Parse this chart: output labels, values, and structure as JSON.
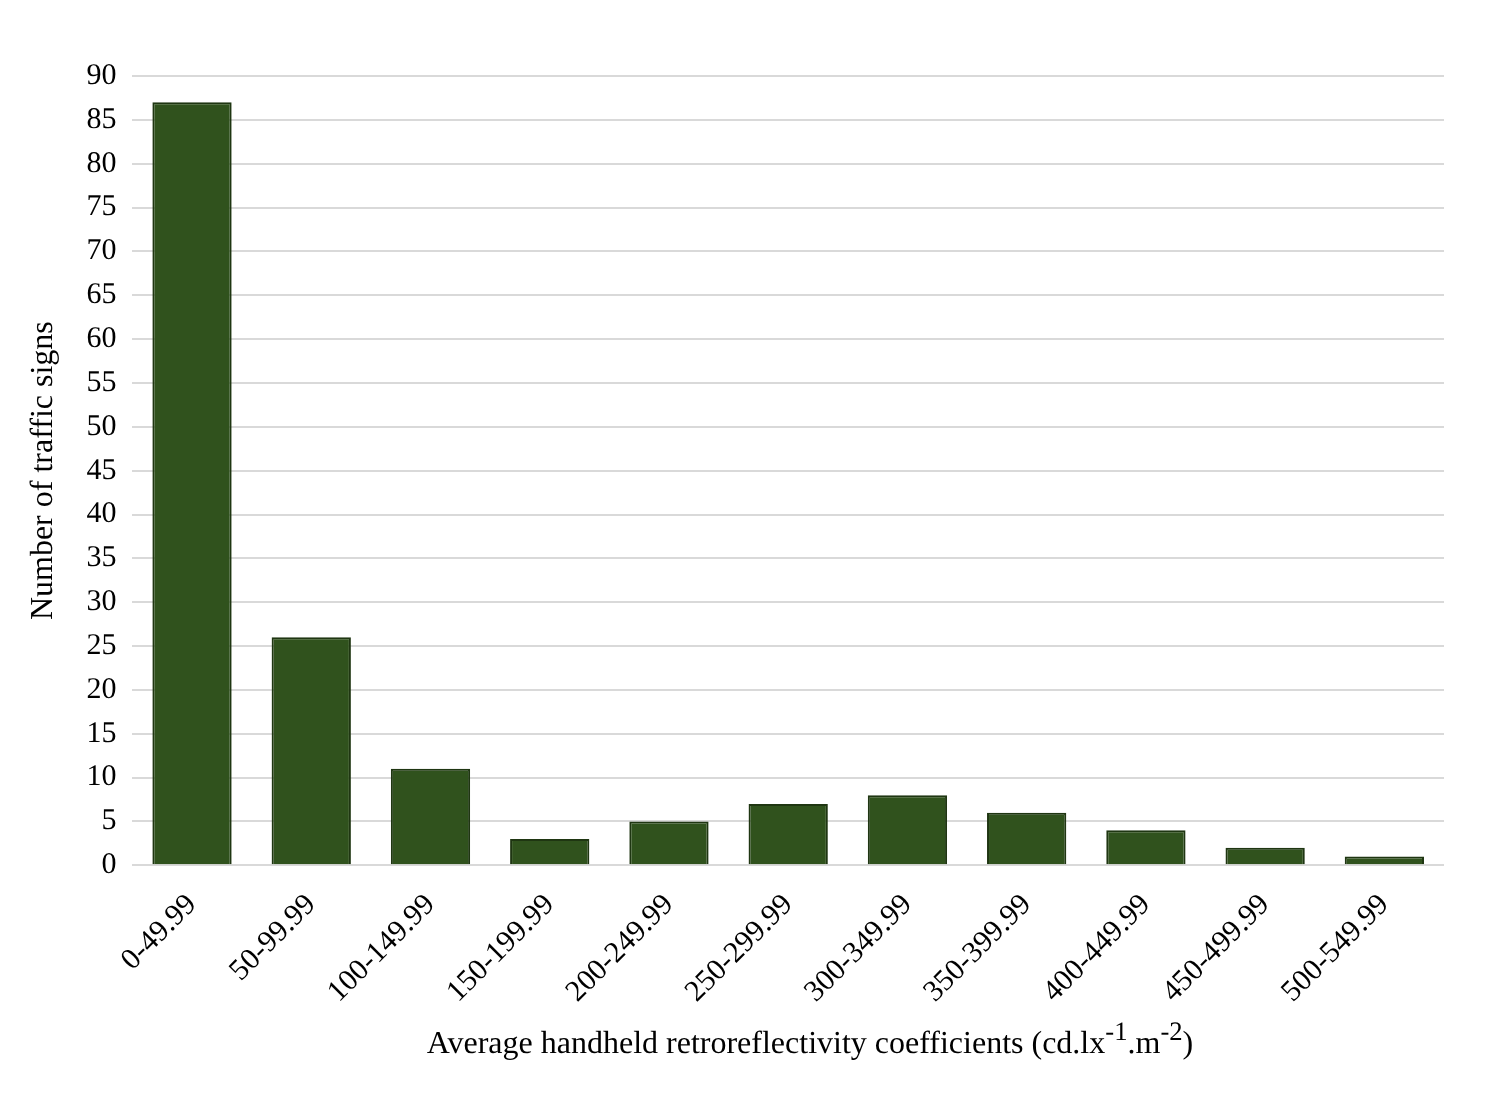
{
  "chart_data": {
    "type": "bar",
    "xlabel": "Average handheld retroreflectivity coefficients (cd.lx$^{-1}$.m$^{-2}$)",
    "ylabel": "Number of traffic signs",
    "categories": [
      "0-49.99",
      "50-99.99",
      "100-149.99",
      "150-199.99",
      "200-249.99",
      "250-299.99",
      "300-349.99",
      "350-399.99",
      "400-449.99",
      "450-499.99",
      "500-549.99"
    ],
    "values": [
      87,
      26,
      11,
      3,
      5,
      7,
      8,
      6,
      4,
      2,
      1
    ],
    "color": "#30521d",
    "ylim": [
      0,
      90
    ],
    "yticks": [
      0,
      5,
      10,
      15,
      20,
      25,
      30,
      35,
      40,
      45,
      50,
      55,
      60,
      65,
      70,
      75,
      80,
      85,
      90
    ],
    "grid": "y",
    "legend": false
  }
}
